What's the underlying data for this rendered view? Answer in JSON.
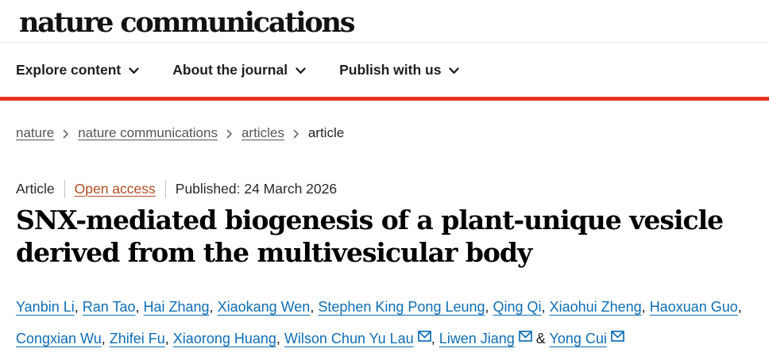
{
  "header": {
    "logo": "nature communications",
    "nav": [
      {
        "label": "Explore content"
      },
      {
        "label": "About the journal"
      },
      {
        "label": "Publish with us"
      }
    ]
  },
  "breadcrumb": {
    "items": [
      {
        "label": "nature",
        "link": true
      },
      {
        "label": "nature communications",
        "link": true
      },
      {
        "label": "articles",
        "link": true
      },
      {
        "label": "article",
        "link": false
      }
    ]
  },
  "article": {
    "type_label": "Article",
    "access_label": "Open access",
    "published_label": "Published: 24 March 2026",
    "title": "SNX-mediated biogenesis of a plant-unique vesicle derived from the multivesicular body",
    "authors": [
      {
        "name": "Yanbin Li"
      },
      {
        "name": "Ran Tao"
      },
      {
        "name": "Hai Zhang"
      },
      {
        "name": "Xiaokang Wen"
      },
      {
        "name": "Stephen King Pong Leung"
      },
      {
        "name": "Qing Qi"
      },
      {
        "name": "Xiaohui Zheng"
      },
      {
        "name": "Haoxuan Guo"
      },
      {
        "name": "Congxian Wu"
      },
      {
        "name": "Zhifei Fu"
      },
      {
        "name": "Xiaorong Huang"
      },
      {
        "name": "Wilson Chun Yu Lau",
        "email": true
      },
      {
        "name": "Liwen Jiang",
        "email": true
      },
      {
        "name": "Yong Cui",
        "email": true
      }
    ]
  },
  "icons": {
    "nav_chevron": "chevron-down",
    "breadcrumb_separator": "chevron-right",
    "email": "envelope"
  },
  "colors": {
    "accent_red": "#e63323",
    "link_blue": "#0d6eb4",
    "open_access": "#b04b21",
    "breadcrumb_gray": "#565656"
  }
}
